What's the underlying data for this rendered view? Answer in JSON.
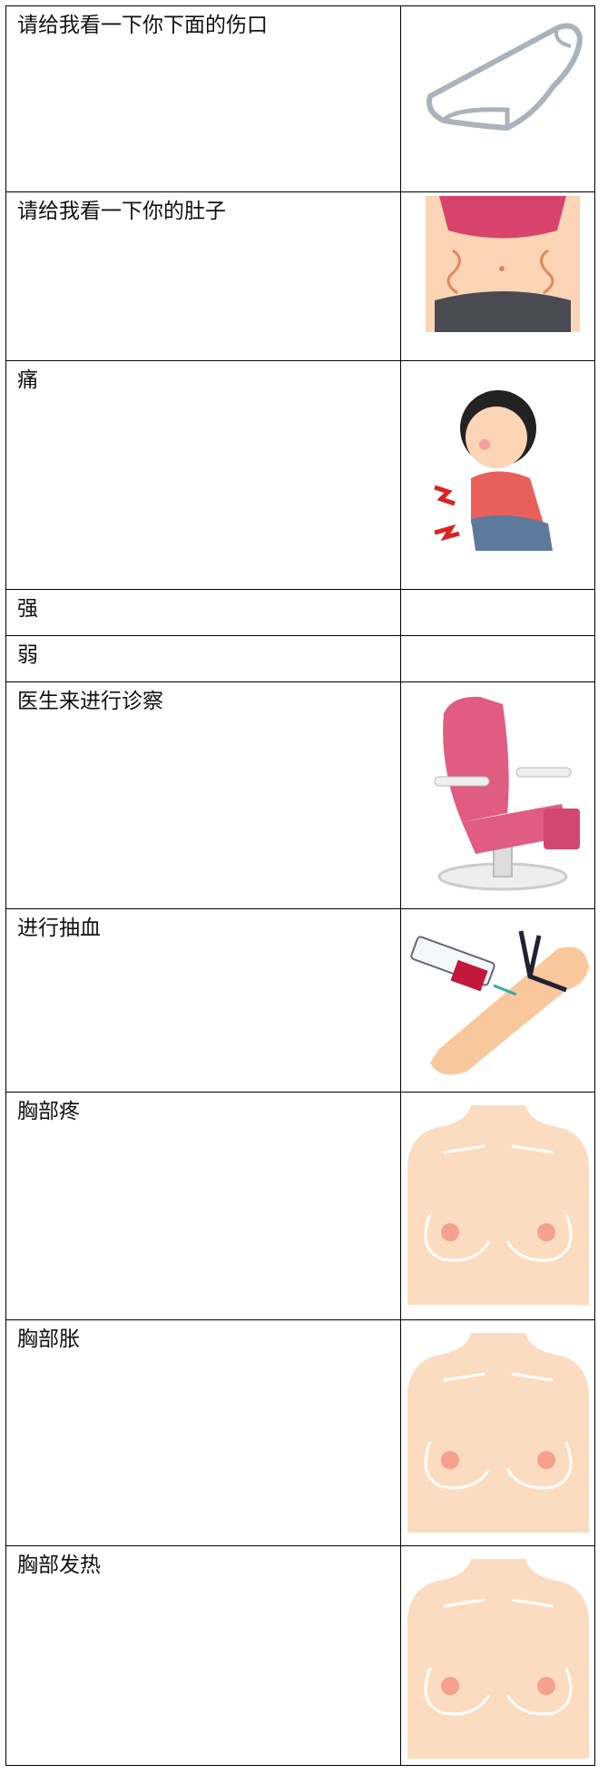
{
  "table": {
    "rows": [
      [
        "请给我看一下你下面的伤口"
      ],
      [
        "请给我看一下你的肚子"
      ],
      [
        "痛"
      ],
      [
        "强"
      ],
      [
        "弱"
      ],
      [
        "医生来进行诊察"
      ],
      [
        "进行抽血"
      ],
      [
        "胸部疼"
      ],
      [
        "胸部胀"
      ],
      [
        "胸部发热"
      ]
    ]
  }
}
